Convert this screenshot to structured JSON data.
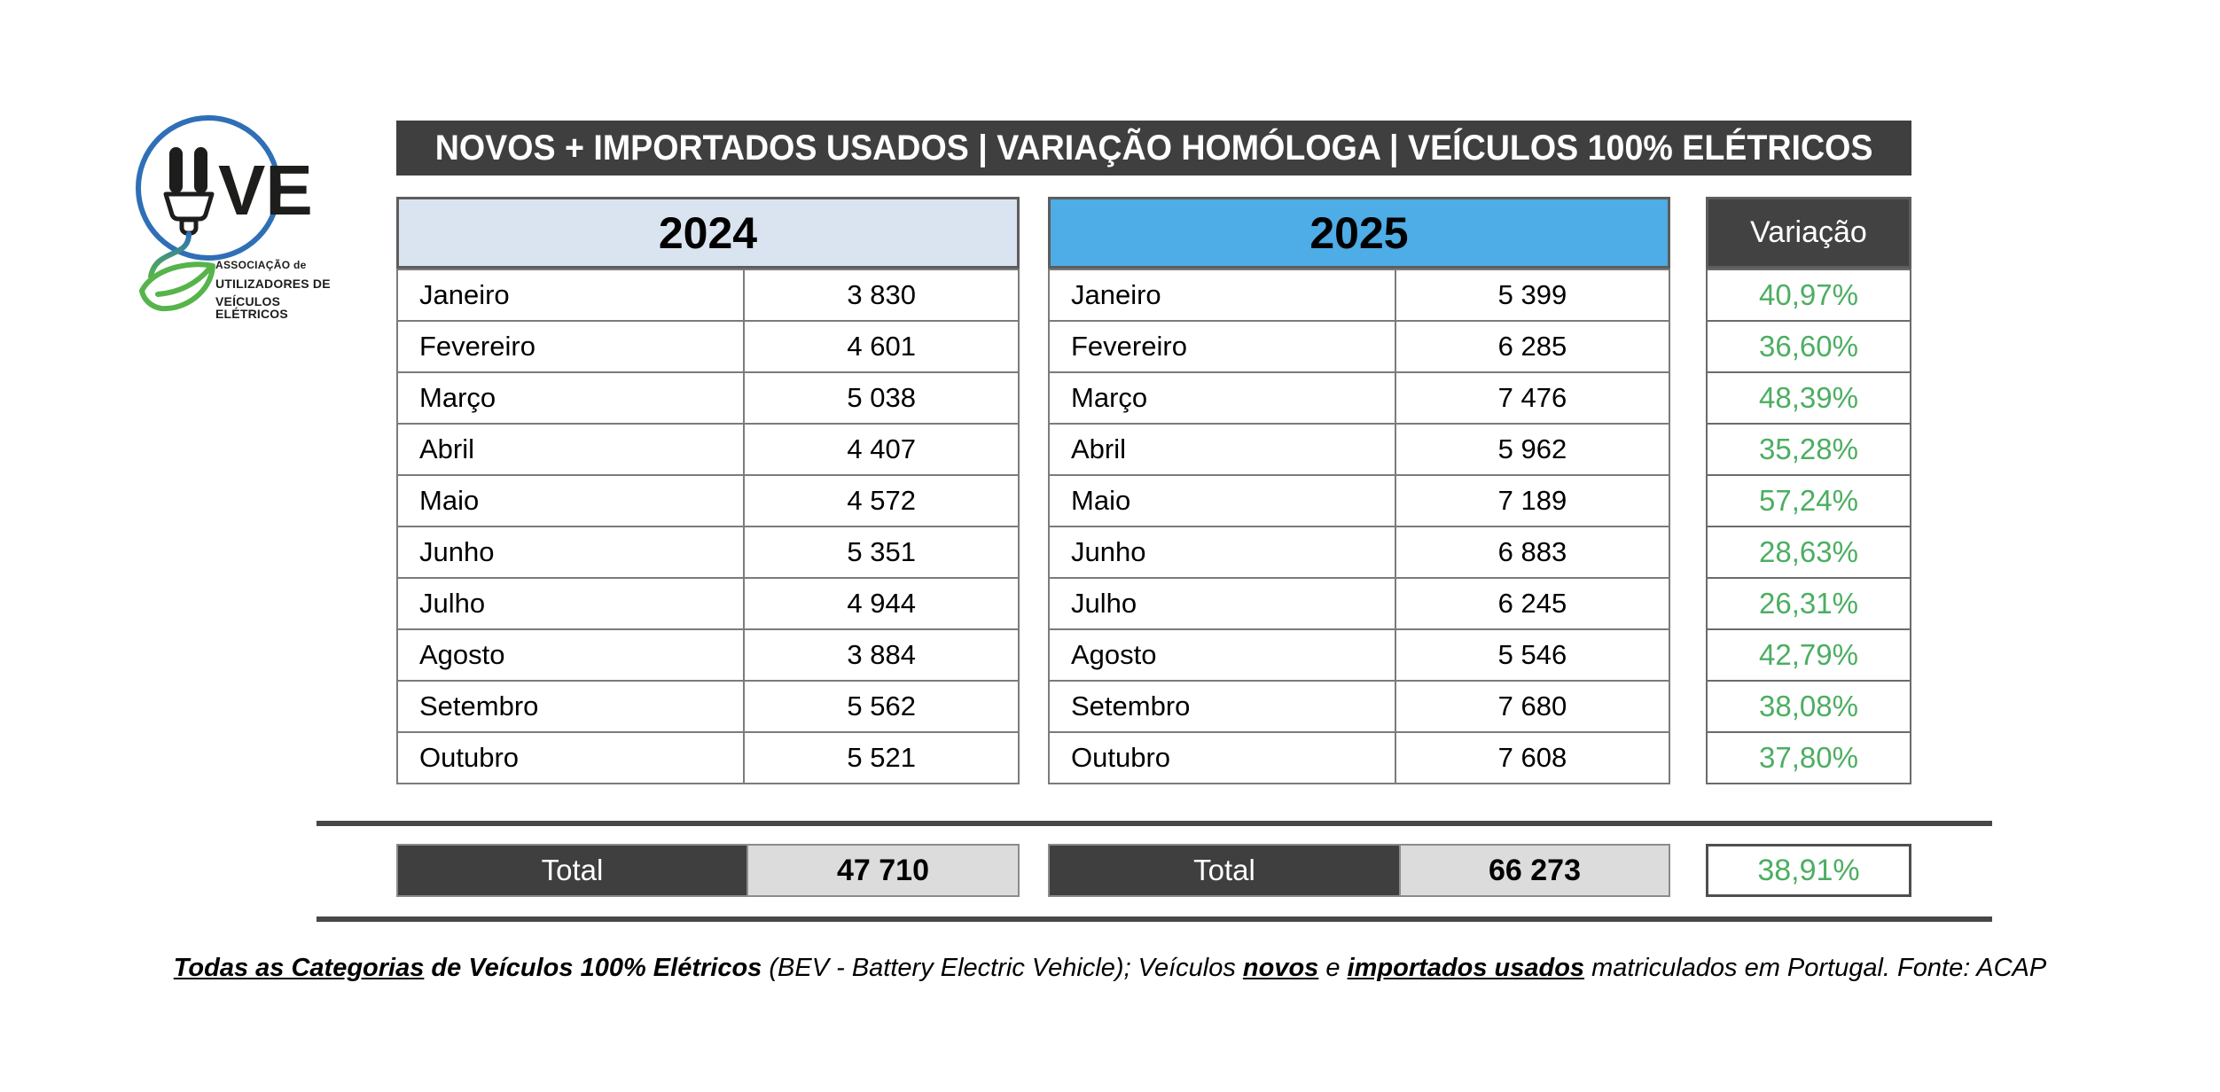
{
  "logo": {
    "acronym": "UVE",
    "org_lines": [
      "ASSOCIAÇÃO de",
      "UTILIZADORES DE",
      "VEÍCULOS ELÉTRICOS"
    ]
  },
  "header": {
    "title": "NOVOS + IMPORTADOS USADOS | VARIAÇÃO HOMÓLOGA | VEÍCULOS 100% ELÉTRICOS"
  },
  "table": {
    "col_2024_label": "2024",
    "col_2025_label": "2025",
    "variation_label": "Variação",
    "total_label": "Total",
    "rows": [
      {
        "month": "Janeiro",
        "y2024": "3 830",
        "y2025": "5 399",
        "variation": "40,97%"
      },
      {
        "month": "Fevereiro",
        "y2024": "4 601",
        "y2025": "6 285",
        "variation": "36,60%"
      },
      {
        "month": "Março",
        "y2024": "5 038",
        "y2025": "7 476",
        "variation": "48,39%"
      },
      {
        "month": "Abril",
        "y2024": "4 407",
        "y2025": "5 962",
        "variation": "35,28%"
      },
      {
        "month": "Maio",
        "y2024": "4 572",
        "y2025": "7 189",
        "variation": "57,24%"
      },
      {
        "month": "Junho",
        "y2024": "5 351",
        "y2025": "6 883",
        "variation": "28,63%"
      },
      {
        "month": "Julho",
        "y2024": "4 944",
        "y2025": "6 245",
        "variation": "26,31%"
      },
      {
        "month": "Agosto",
        "y2024": "3 884",
        "y2025": "5 546",
        "variation": "42,79%"
      },
      {
        "month": "Setembro",
        "y2024": "5 562",
        "y2025": "7 680",
        "variation": "38,08%"
      },
      {
        "month": "Outubro",
        "y2024": "5 521",
        "y2025": "7 608",
        "variation": "37,80%"
      }
    ],
    "total_2024": "47 710",
    "total_2025": "66 273",
    "total_variation": "38,91%"
  },
  "footer": {
    "segments": [
      {
        "text": "Todas as Categorias",
        "bold": true,
        "underline": true
      },
      {
        "text": " de Veículos 100% Elétricos ",
        "bold": true,
        "underline": false
      },
      {
        "text": "(BEV - Battery Electric Vehicle); Veículos ",
        "bold": false,
        "underline": false
      },
      {
        "text": "novos",
        "bold": true,
        "underline": true
      },
      {
        "text": " e ",
        "bold": false,
        "underline": false
      },
      {
        "text": "importados usados",
        "bold": true,
        "underline": true
      },
      {
        "text": " matriculados em Portugal. Fonte: ACAP",
        "bold": false,
        "underline": false
      }
    ]
  },
  "colors": {
    "title_bar_bg": "#3f3f3f",
    "header_2024_bg": "#dae3f0",
    "header_2025_bg": "#4eace6",
    "variation_header_bg": "#424242",
    "total_value_bg": "#dcdcdc",
    "positive_green": "#4cae62",
    "logo_blue": "#2f6fb6",
    "logo_green": "#56b44a"
  },
  "chart_data": {
    "type": "table",
    "title": "NOVOS + IMPORTADOS USADOS | VARIAÇÃO HOMÓLOGA | VEÍCULOS 100% ELÉTRICOS",
    "categories": [
      "Janeiro",
      "Fevereiro",
      "Março",
      "Abril",
      "Maio",
      "Junho",
      "Julho",
      "Agosto",
      "Setembro",
      "Outubro"
    ],
    "series": [
      {
        "name": "2024",
        "values": [
          3830,
          4601,
          5038,
          4407,
          4572,
          5351,
          4944,
          3884,
          5562,
          5521
        ]
      },
      {
        "name": "2025",
        "values": [
          5399,
          6285,
          7476,
          5962,
          7189,
          6883,
          6245,
          5546,
          7680,
          7608
        ]
      },
      {
        "name": "Variação (%)",
        "values": [
          40.97,
          36.6,
          48.39,
          35.28,
          57.24,
          28.63,
          26.31,
          42.79,
          38.08,
          37.8
        ]
      }
    ],
    "totals": {
      "total_2024": 47710,
      "total_2025": 66273,
      "total_variation_pct": 38.91
    },
    "source": "Fonte: ACAP"
  }
}
